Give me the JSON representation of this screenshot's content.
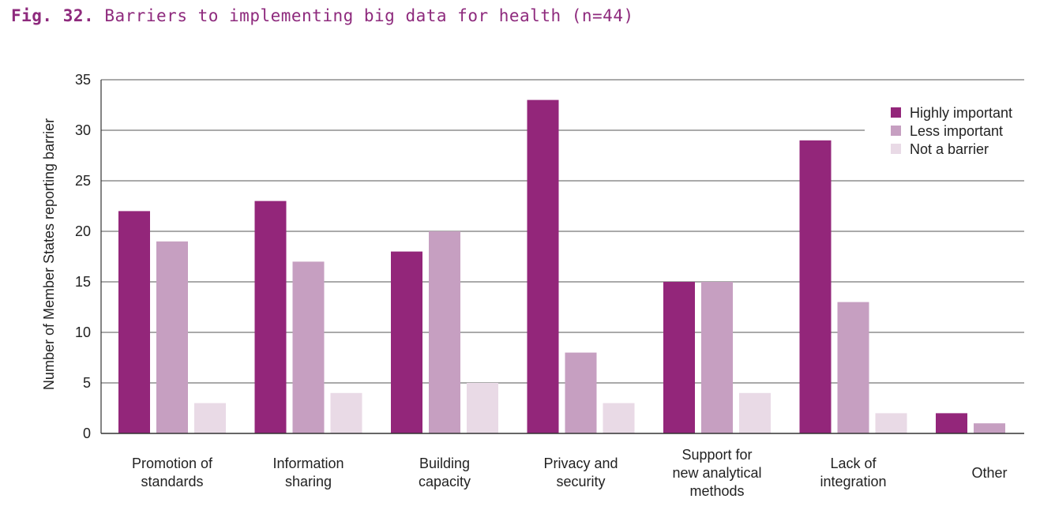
{
  "figure": {
    "number_label": "Fig. 32.",
    "title_text": "Barriers to implementing big data for health (n=44)",
    "title_color": "#8e2a7d"
  },
  "chart_data": {
    "type": "bar",
    "title": "Barriers to implementing big data for health (n=44)",
    "xlabel": "",
    "ylabel": "Number of Member States reporting barrier",
    "ylim": [
      0,
      35
    ],
    "yticks": [
      0,
      5,
      10,
      15,
      20,
      25,
      30,
      35
    ],
    "grid": true,
    "legend_position": "top-right",
    "categories": [
      [
        "Promotion of",
        "standards"
      ],
      [
        "Information",
        "sharing"
      ],
      [
        "Building",
        "capacity"
      ],
      [
        "Privacy and",
        "security"
      ],
      [
        "Support for",
        "new analytical",
        "methods"
      ],
      [
        "Lack of",
        "integration"
      ],
      [
        "Other"
      ]
    ],
    "series": [
      {
        "name": "Highly important",
        "color": "#93267a",
        "values": [
          22,
          23,
          18,
          33,
          15,
          29,
          2
        ]
      },
      {
        "name": "Less important",
        "color": "#c69fc1",
        "values": [
          19,
          17,
          20,
          8,
          15,
          13,
          1
        ]
      },
      {
        "name": "Not a barrier",
        "color": "#e9dae6",
        "values": [
          3,
          4,
          5,
          3,
          4,
          2,
          null
        ]
      }
    ]
  }
}
